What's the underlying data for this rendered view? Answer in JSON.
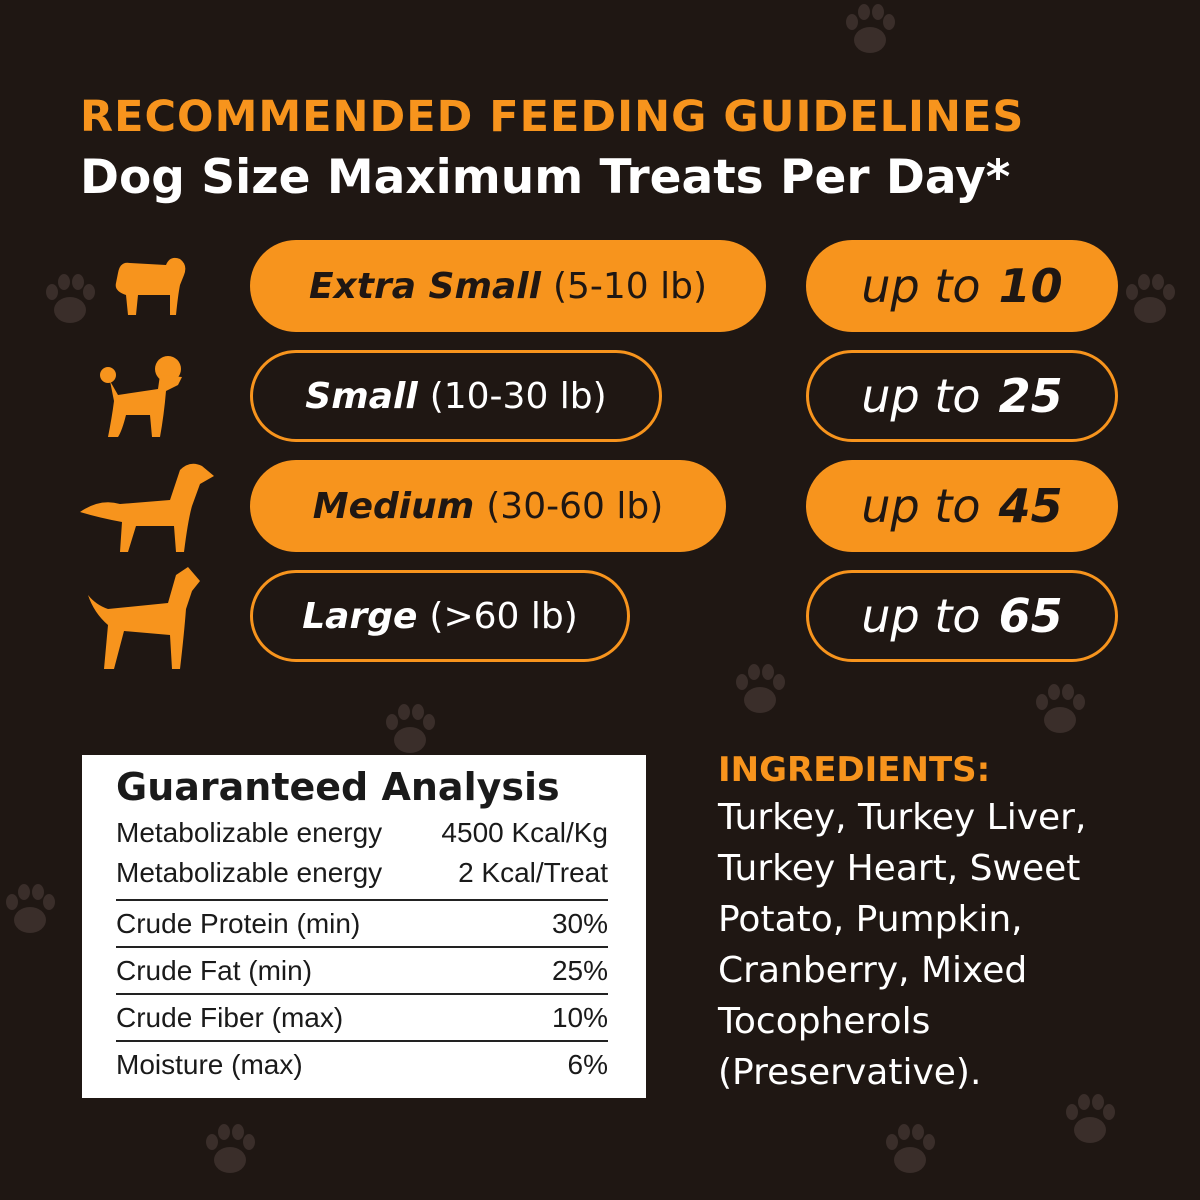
{
  "header": {
    "title": "RECOMMENDED FEEDING GUIDELINES",
    "subtitle": "Dog Size Maximum Treats Per Day*"
  },
  "colors": {
    "accent": "#f7941d",
    "background": "#1f1713"
  },
  "rows": [
    {
      "icon": "pug-icon",
      "size": "Extra Small",
      "range": "(5-10 lb)",
      "prefix": "up to",
      "count": "10"
    },
    {
      "icon": "poodle-icon",
      "size": "Small",
      "range": "(10-30 lb)",
      "prefix": "up to",
      "count": "25"
    },
    {
      "icon": "setter-icon",
      "size": "Medium",
      "range": "(30-60 lb)",
      "prefix": "up to",
      "count": "45"
    },
    {
      "icon": "boxer-icon",
      "size": "Large",
      "range": "(>60 lb)",
      "prefix": "up to",
      "count": "65"
    }
  ],
  "analysis": {
    "title": "Guaranteed Analysis",
    "rows": [
      {
        "label": "Metabolizable energy",
        "value": "4500 Kcal/Kg"
      },
      {
        "label": "Metabolizable energy",
        "value": "2 Kcal/Treat"
      },
      {
        "label": "Crude Protein (min)",
        "value": "30%"
      },
      {
        "label": "Crude Fat (min)",
        "value": "25%"
      },
      {
        "label": "Crude Fiber (max)",
        "value": "10%"
      },
      {
        "label": "Moisture (max)",
        "value": "6%"
      }
    ]
  },
  "ingredients": {
    "title": "INGREDIENTS:",
    "text": "Turkey, Turkey Liver, Turkey Heart, Sweet Potato, Pumpkin, Cranberry, Mixed Tocopherols (Preservative)."
  }
}
